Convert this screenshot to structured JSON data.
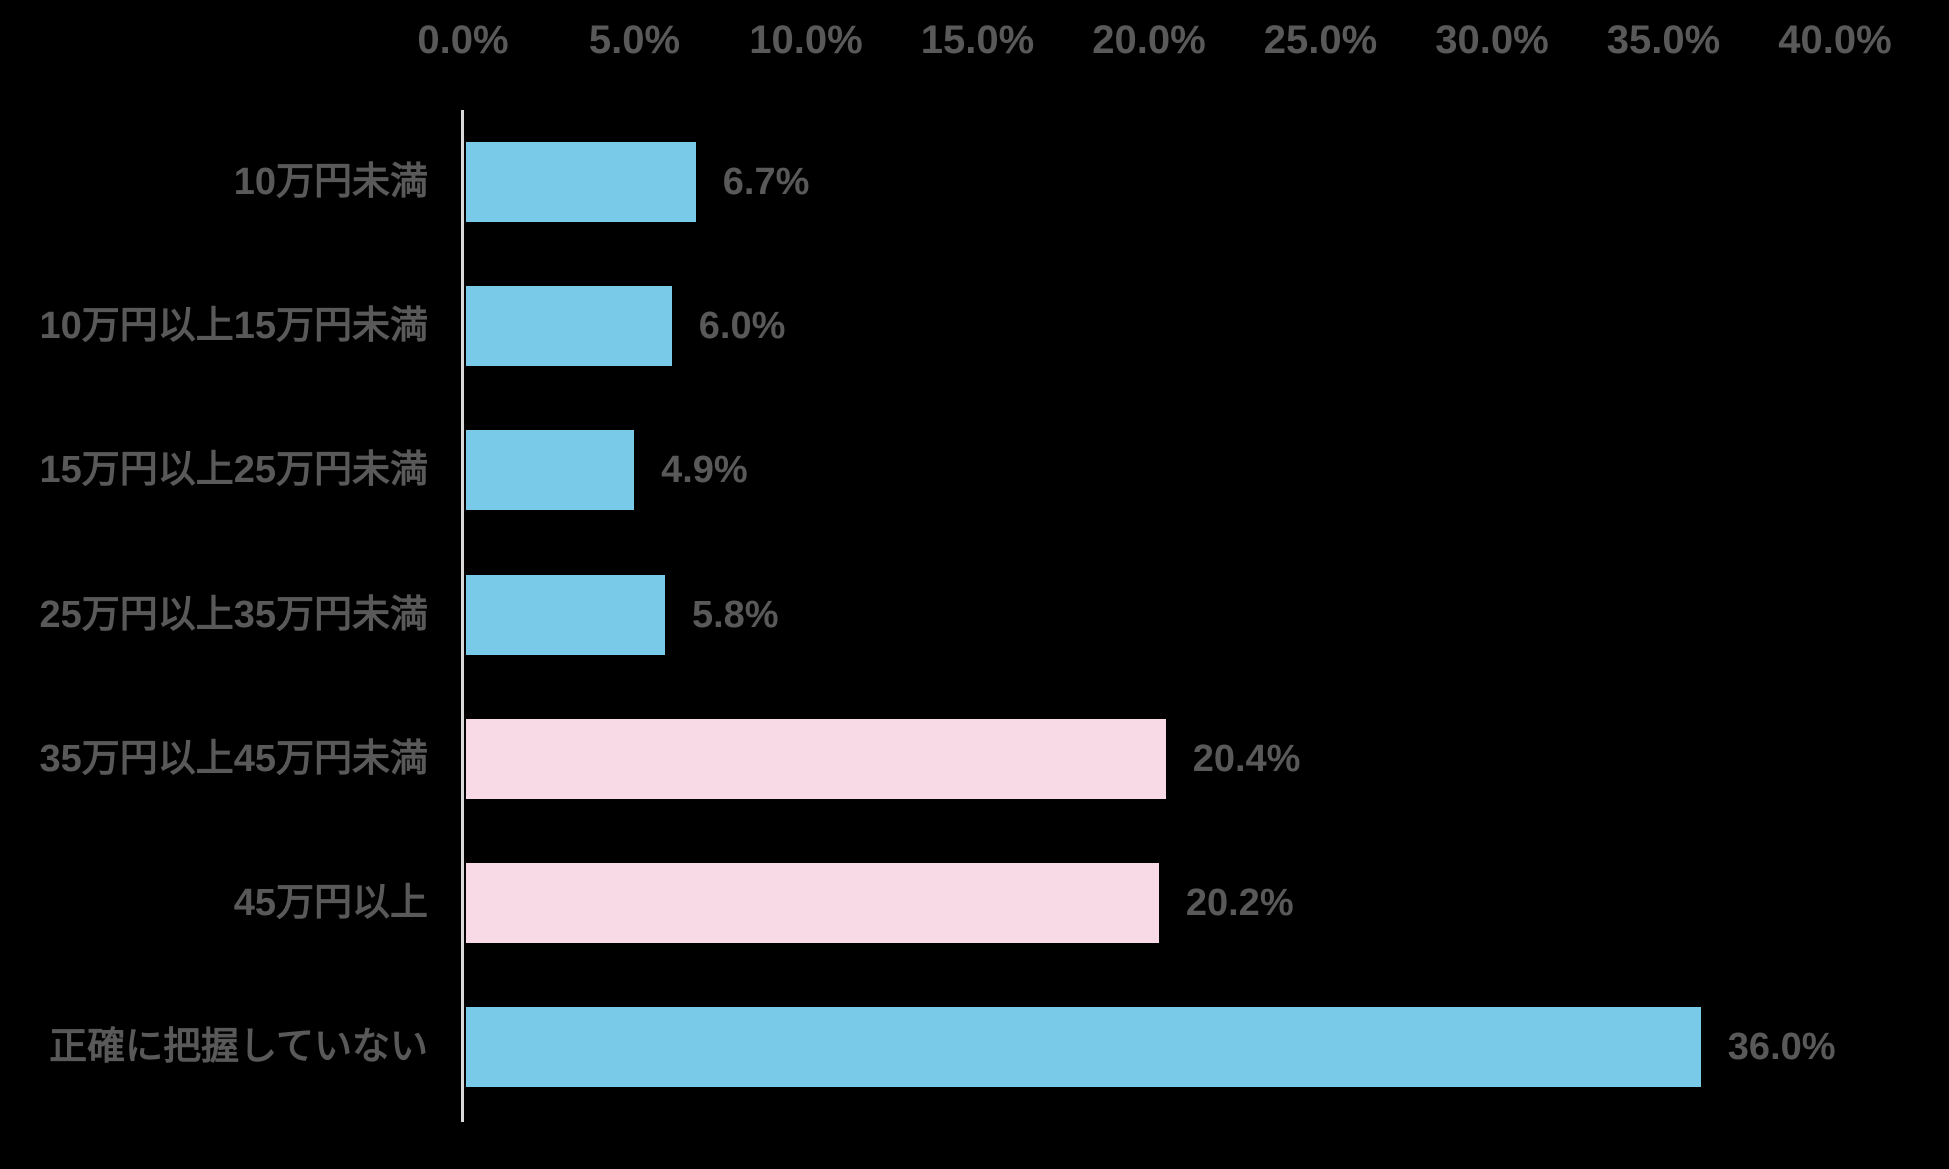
{
  "chart_data": {
    "type": "bar",
    "orientation": "horizontal",
    "title": "",
    "categories": [
      "10万円未満",
      "10万円以上15万円未満",
      "15万円以上25万円未満",
      "25万円以上35万円未満",
      "35万円以上45万円未満",
      "45万円以上",
      "正確に把握していない"
    ],
    "values": [
      6.7,
      6.0,
      4.9,
      5.8,
      20.4,
      20.2,
      36.0
    ],
    "value_labels": [
      "6.7%",
      "6.0%",
      "4.9%",
      "5.8%",
      "20.4%",
      "20.2%",
      "36.0%"
    ],
    "bar_colors": [
      "#79CAE9",
      "#79CAE9",
      "#79CAE9",
      "#79CAE9",
      "#F8D9E6",
      "#F8D9E6",
      "#79CAE9"
    ],
    "x_axis": {
      "position": "top",
      "min": 0,
      "max": 40,
      "tick_step": 5,
      "tick_labels": [
        "0.0%",
        "5.0%",
        "10.0%",
        "15.0%",
        "20.0%",
        "25.0%",
        "30.0%",
        "35.0%",
        "40.0%"
      ]
    },
    "grid": false,
    "legend": false,
    "colors": {
      "bar_blue": "#79CAE9",
      "bar_pink": "#F8D9E6",
      "label_text": "#595959",
      "axis_line": "#D9D9D9",
      "background": "#000000"
    }
  }
}
